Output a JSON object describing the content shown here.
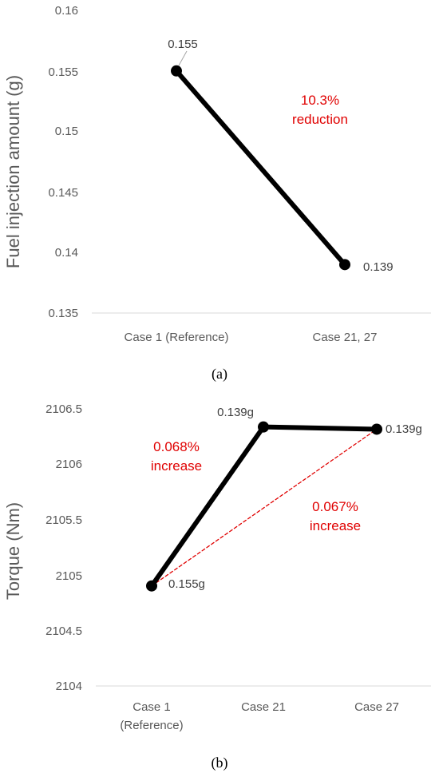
{
  "chart_data": [
    {
      "type": "line",
      "caption": "(a)",
      "ylabel": "Fuel injection amount (g)",
      "xlabel": "",
      "ylim": [
        0.135,
        0.16
      ],
      "yticks": [
        "0.16",
        "0.155",
        "0.15",
        "0.145",
        "0.14",
        "0.135"
      ],
      "categories": [
        [
          "Case 1 (Reference)"
        ],
        [
          "Case 21, 27"
        ]
      ],
      "series": [
        {
          "values": [
            0.155,
            0.139
          ],
          "color": "#000000",
          "style": "solid"
        }
      ],
      "data_labels": [
        "0.155",
        "0.139"
      ],
      "annotation": {
        "lines": [
          "10.3%",
          "reduction"
        ],
        "color": "#e00000"
      },
      "grid": false
    },
    {
      "type": "line",
      "caption": "(b)",
      "ylabel": "Torque (Nm)",
      "xlabel": "",
      "ylim": [
        2104,
        2106.5
      ],
      "yticks": [
        "2106.5",
        "2106",
        "2105.5",
        "2105",
        "2104.5",
        "2104"
      ],
      "categories": [
        [
          "Case 1",
          "(Reference)"
        ],
        [
          "Case 21"
        ],
        [
          "Case 27"
        ]
      ],
      "series": [
        {
          "values": [
            2104.9,
            2106.33,
            2106.31
          ],
          "color": "#000000",
          "style": "solid"
        },
        {
          "values": [
            2104.9,
            null,
            2106.31
          ],
          "color": "#e00000",
          "style": "dashed"
        }
      ],
      "data_labels": [
        "0.155g",
        "0.139g",
        "0.139g"
      ],
      "annotations": [
        {
          "lines": [
            "0.068%",
            "increase"
          ],
          "color": "#e00000"
        },
        {
          "lines": [
            "0.067%",
            "increase"
          ],
          "color": "#e00000"
        }
      ],
      "grid": false
    }
  ]
}
